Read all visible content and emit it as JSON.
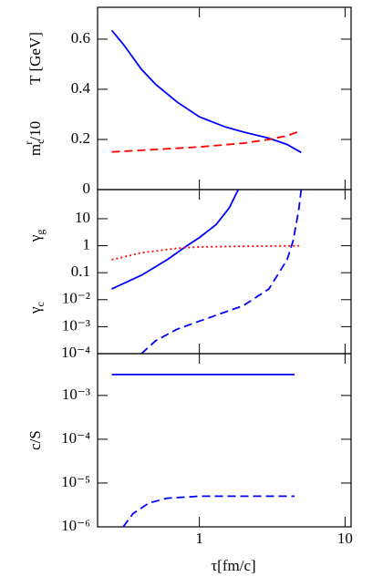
{
  "chart_data": [
    {
      "type": "line",
      "ylabel": "T [GeV]",
      "ylabel2": {
        "base": "m",
        "sub": "c",
        "sup": "r",
        "rest": "/10"
      },
      "ylim": [
        0,
        0.727
      ],
      "yticks": [
        0,
        0.2,
        0.4,
        0.6
      ],
      "series": [
        {
          "color": "#0000ff",
          "style": "solid",
          "x": [
            0.25,
            0.3,
            0.4,
            0.5,
            0.7,
            1,
            1.5,
            2,
            3,
            4,
            5
          ],
          "values": [
            0.635,
            0.58,
            0.48,
            0.42,
            0.35,
            0.29,
            0.25,
            0.23,
            0.205,
            0.18,
            0.148
          ]
        },
        {
          "color": "#ff0000",
          "style": "dashed",
          "x": [
            0.25,
            0.5,
            1,
            2,
            3,
            4,
            5
          ],
          "values": [
            0.15,
            0.16,
            0.17,
            0.185,
            0.2,
            0.215,
            0.235
          ]
        }
      ]
    },
    {
      "type": "line",
      "ylabel": {
        "base": "γ",
        "sub": "g"
      },
      "ylabel2": {
        "base": "γ",
        "sub": "c"
      },
      "log_y": true,
      "ylim": [
        0.0001,
        120
      ],
      "yticks": [
        10,
        1,
        0.1,
        {
          "value": 0.01,
          "label": "10⁻²"
        },
        {
          "value": 0.001,
          "label": "10⁻³"
        },
        {
          "value": 0.0001,
          "label": "10⁻⁴"
        }
      ],
      "series": [
        {
          "color": "#0000ff",
          "style": "solid",
          "x": [
            0.25,
            0.4,
            0.6,
            0.8,
            1,
            1.3,
            1.6,
            1.85
          ],
          "values": [
            0.025,
            0.08,
            0.3,
            0.9,
            2,
            6,
            25,
            120
          ]
        },
        {
          "color": "#ff0000",
          "style": "dotted",
          "x": [
            0.25,
            0.4,
            0.7,
            1,
            2,
            5
          ],
          "values": [
            0.3,
            0.55,
            0.8,
            0.9,
            0.95,
            1
          ]
        },
        {
          "color": "#0000ff",
          "style": "dashed",
          "x": [
            0.4,
            0.5,
            0.7,
            1,
            2,
            3,
            4,
            4.4,
            4.8,
            5
          ],
          "values": [
            0.0001,
            0.0003,
            0.0008,
            0.0016,
            0.006,
            0.025,
            0.3,
            1.5,
            20,
            120
          ]
        }
      ]
    },
    {
      "type": "line",
      "ylabel": "c/S",
      "log_y": true,
      "log_x": true,
      "ylim": [
        1e-06,
        0.009
      ],
      "yticks": [
        {
          "value": 0.001,
          "label": "10⁻³"
        },
        {
          "value": 0.0001,
          "label": "10⁻⁴"
        },
        {
          "value": 1e-05,
          "label": "10⁻⁵"
        },
        {
          "value": 1e-06,
          "label": "10⁻⁶"
        }
      ],
      "xlim": [
        0.2,
        11
      ],
      "xticks": [
        1,
        10
      ],
      "xlabel": "τ[fm/c]",
      "series": [
        {
          "color": "#0000ff",
          "style": "solid",
          "x": [
            0.25,
            4.5
          ],
          "values": [
            0.003,
            0.003
          ]
        },
        {
          "color": "#0000ff",
          "style": "dashed",
          "x": [
            0.3,
            0.35,
            0.45,
            0.6,
            1,
            4.5
          ],
          "values": [
            1e-06,
            2e-06,
            3.5e-06,
            4.5e-06,
            5e-06,
            5e-06
          ]
        }
      ]
    }
  ]
}
